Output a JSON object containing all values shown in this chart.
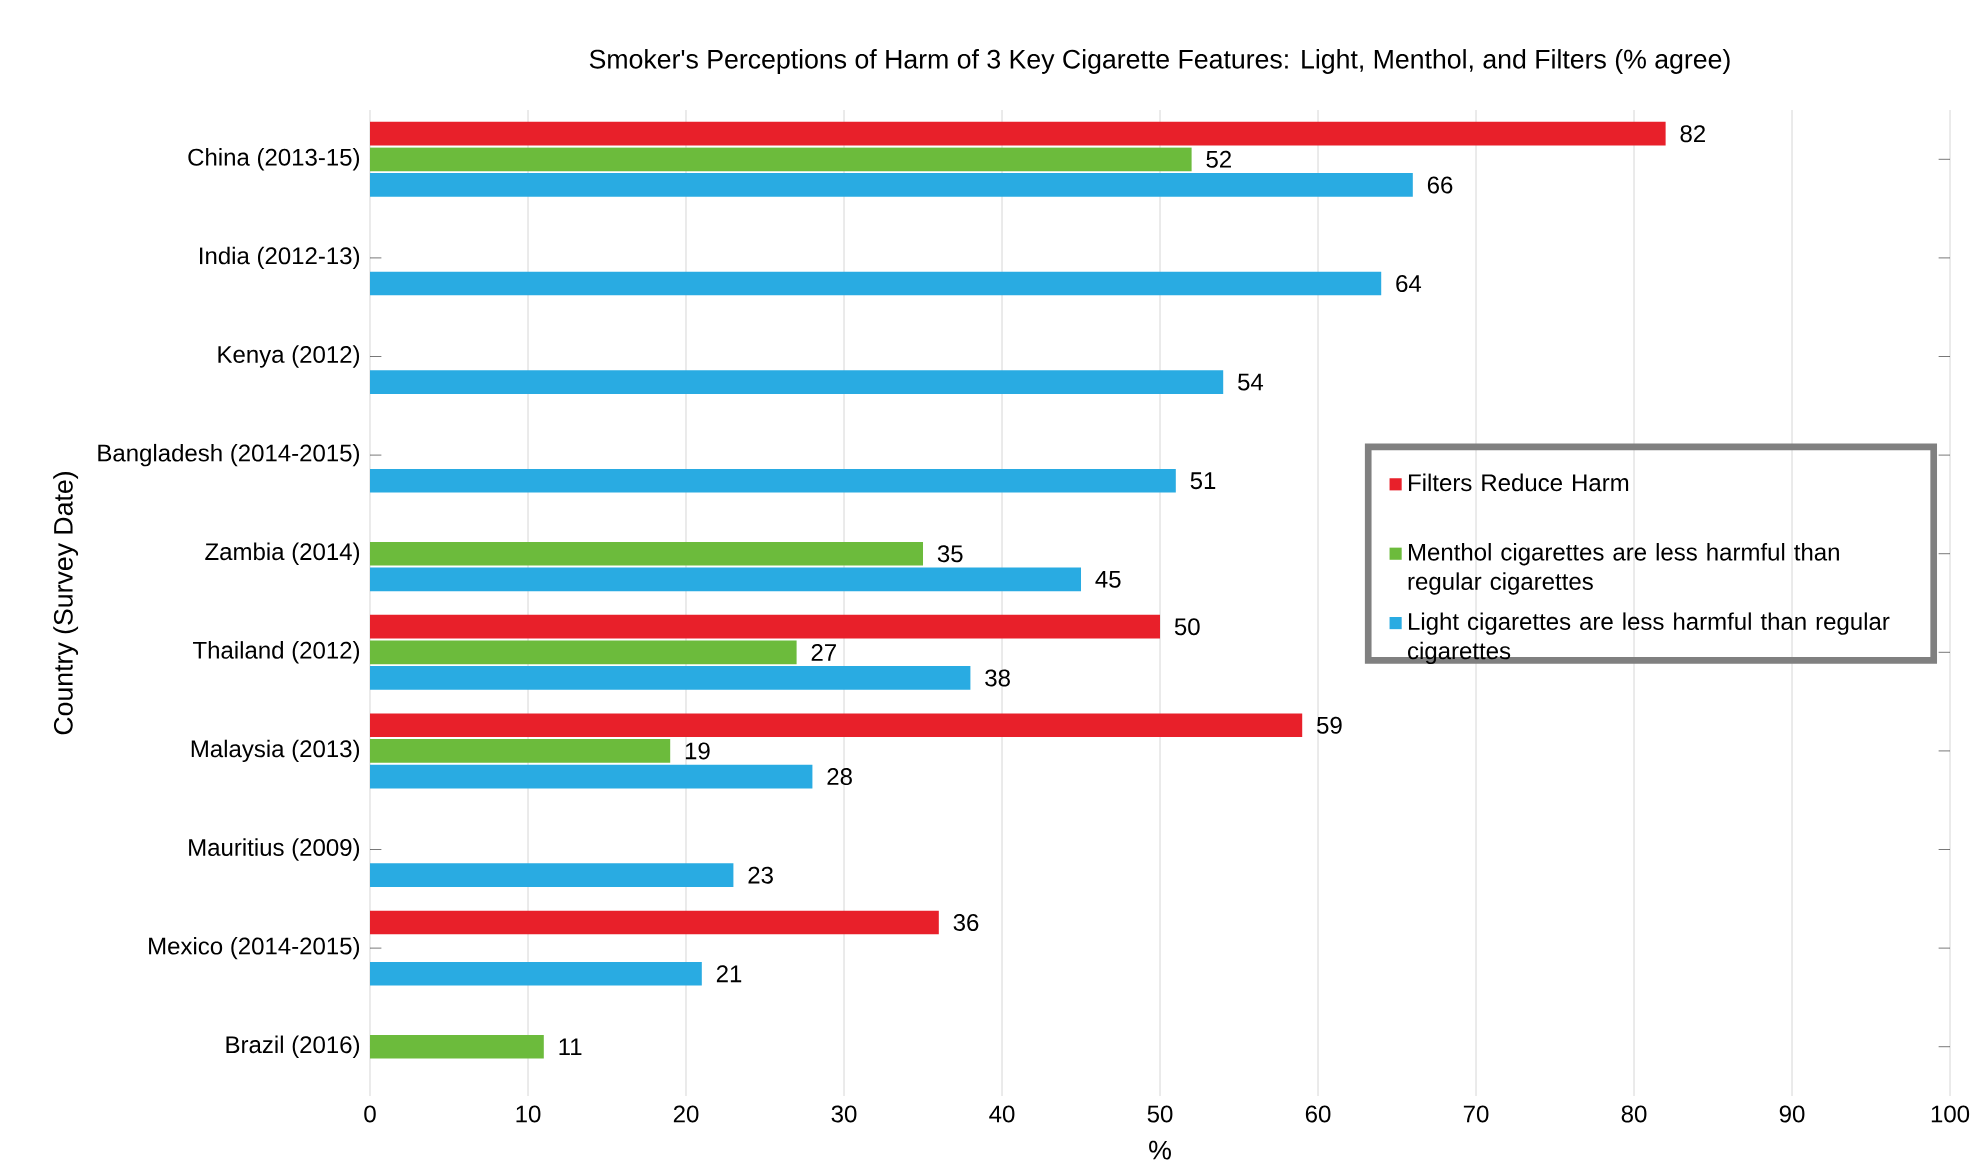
{
  "chart_data": {
    "type": "bar",
    "orientation": "horizontal",
    "title": "Smoker's Perceptions of Harm of 3 Key Cigarette Features: Light, Menthol, and Filters (% agree)",
    "xlabel": "%",
    "ylabel": "Country (Survey Date)",
    "categories": [
      "China (2013-15)",
      "India (2012-13)",
      "Kenya (2012)",
      "Bangladesh (2014-2015)",
      "Zambia (2014)",
      "Thailand (2012)",
      "Malaysia (2013)",
      "Mauritius (2009)",
      "Mexico (2014-2015)",
      "Brazil (2016)"
    ],
    "series": [
      {
        "name": "Filters Reduce Harm",
        "color": "#e8202a",
        "values": [
          82,
          null,
          null,
          null,
          null,
          50,
          59,
          null,
          36,
          null
        ]
      },
      {
        "name": "Menthol cigarettes are less harmful than regular cigarettes",
        "color": "#6cbb3c",
        "values": [
          52,
          null,
          null,
          null,
          35,
          27,
          19,
          null,
          null,
          11
        ]
      },
      {
        "name": "Light cigarettes are less harmful than regular cigarettes",
        "color": "#29abe2",
        "values": [
          66,
          64,
          54,
          51,
          45,
          38,
          28,
          23,
          21,
          null
        ]
      }
    ],
    "xlim": [
      0,
      100
    ],
    "xticks": [
      0,
      10,
      20,
      30,
      40,
      50,
      60,
      70,
      80,
      90,
      100
    ],
    "grid": "x",
    "legend": "right",
    "data_labels": true
  }
}
